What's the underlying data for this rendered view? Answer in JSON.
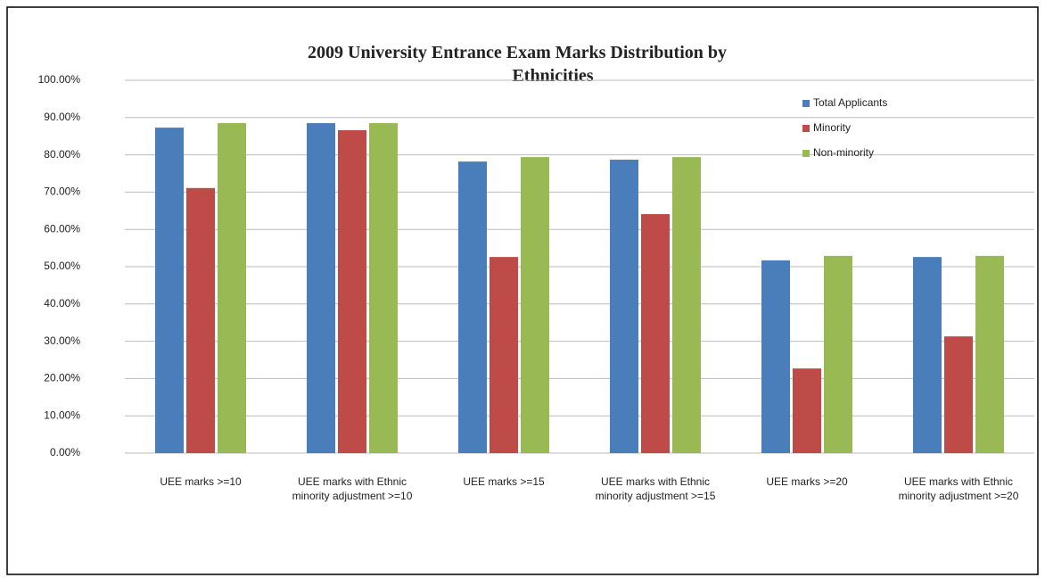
{
  "chart_data": {
    "type": "bar",
    "title": "2009 University Entrance Exam Marks Distribution by Ethnicities",
    "categories": [
      "UEE marks >=10",
      "UEE marks with Ethnic minority adjustment >=10",
      "UEE marks >=15",
      "UEE marks with Ethnic minority adjustment >=15",
      "UEE marks >=20",
      "UEE marks with Ethnic minority adjustment >=20"
    ],
    "series": [
      {
        "name": "Total Applicants",
        "color": "#4a7ebb",
        "values": [
          87.3,
          88.5,
          78.2,
          78.7,
          51.7,
          52.6
        ]
      },
      {
        "name": "Minority",
        "color": "#be4b48",
        "values": [
          71.1,
          86.6,
          52.6,
          64.1,
          22.7,
          31.3
        ]
      },
      {
        "name": "Non-minority",
        "color": "#98b954",
        "values": [
          88.5,
          88.5,
          79.4,
          79.4,
          52.9,
          52.9
        ]
      }
    ],
    "ylim": [
      0,
      100
    ],
    "yticks": [
      {
        "value": 0,
        "label": "0.00%"
      },
      {
        "value": 10,
        "label": "10.00%"
      },
      {
        "value": 20,
        "label": "20.00%"
      },
      {
        "value": 30,
        "label": "30.00%"
      },
      {
        "value": 40,
        "label": "40.00%"
      },
      {
        "value": 50,
        "label": "50.00%"
      },
      {
        "value": 60,
        "label": "60.00%"
      },
      {
        "value": 70,
        "label": "70.00%"
      },
      {
        "value": 80,
        "label": "80.00%"
      },
      {
        "value": 90,
        "label": "90.00%"
      },
      {
        "value": 100,
        "label": "100.00%"
      }
    ],
    "grid": true,
    "legend": "top-right"
  }
}
